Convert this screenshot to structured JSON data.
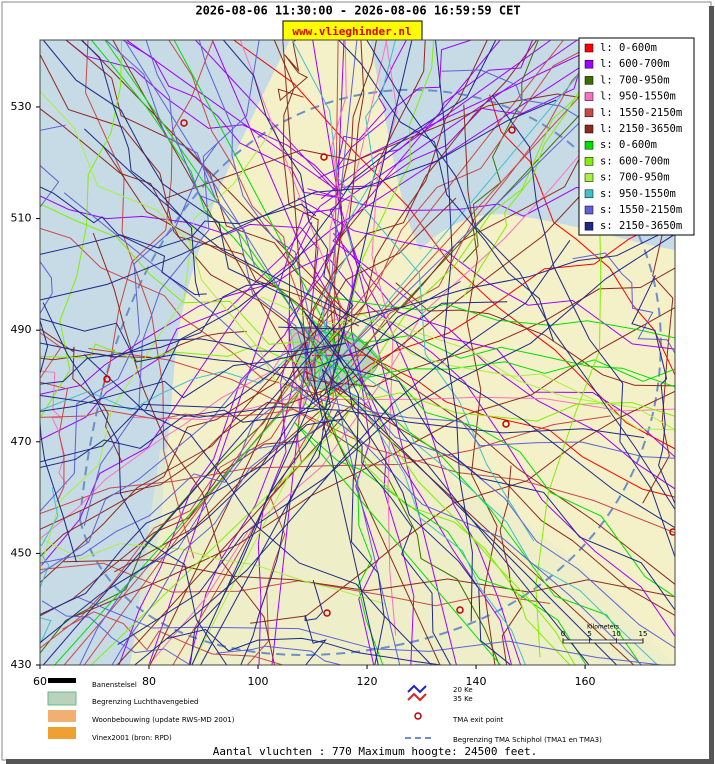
{
  "header": {
    "title": "2026-08-06 11:30:00 - 2026-08-06 16:59:59 CET",
    "link": "www.vlieghinder.nl"
  },
  "map": {
    "xlim": [
      60,
      176.5
    ],
    "ylim": [
      430,
      542
    ],
    "xticks": [
      60,
      80,
      100,
      120,
      140,
      160
    ],
    "yticks": [
      430,
      450,
      470,
      490,
      510,
      530
    ]
  },
  "legend": [
    {
      "label": "l: 0-600m",
      "color": "#ff0000"
    },
    {
      "label": "l: 600-700m",
      "color": "#a000ff"
    },
    {
      "label": "l: 700-950m",
      "color": "#3c6e00"
    },
    {
      "label": "l: 950-1550m",
      "color": "#ff70c0"
    },
    {
      "label": "l: 1550-2150m",
      "color": "#c84848"
    },
    {
      "label": "l: 2150-3650m",
      "color": "#8b2a20"
    },
    {
      "label": "s: 0-600m",
      "color": "#00e000"
    },
    {
      "label": "s: 600-700m",
      "color": "#80f000"
    },
    {
      "label": "s: 700-950m",
      "color": "#a8f040"
    },
    {
      "label": "s: 950-1550m",
      "color": "#40c0c8"
    },
    {
      "label": "s: 1550-2150m",
      "color": "#6060d8"
    },
    {
      "label": "s: 2150-3650m",
      "color": "#202888"
    }
  ],
  "key": {
    "runways": "Banenstelsel",
    "airport": "Begrenzing Luchthavengebied",
    "housing": "Woonbebouwing (update RWS-MD 2001)",
    "vinex": "Vinex2001 (bron: RPD)",
    "ke20": "20 Ke",
    "ke35": "35 Ke",
    "exit": "TMA exit point",
    "tma": "Begrenzing TMA Schiphol  (TMA1 en TMA3)"
  },
  "scale": {
    "title": "Kilometers",
    "ticks": [
      0,
      5,
      10,
      15
    ]
  },
  "footer": "Aantal vluchten : 770 Maximum hoogte: 24500 feet."
}
